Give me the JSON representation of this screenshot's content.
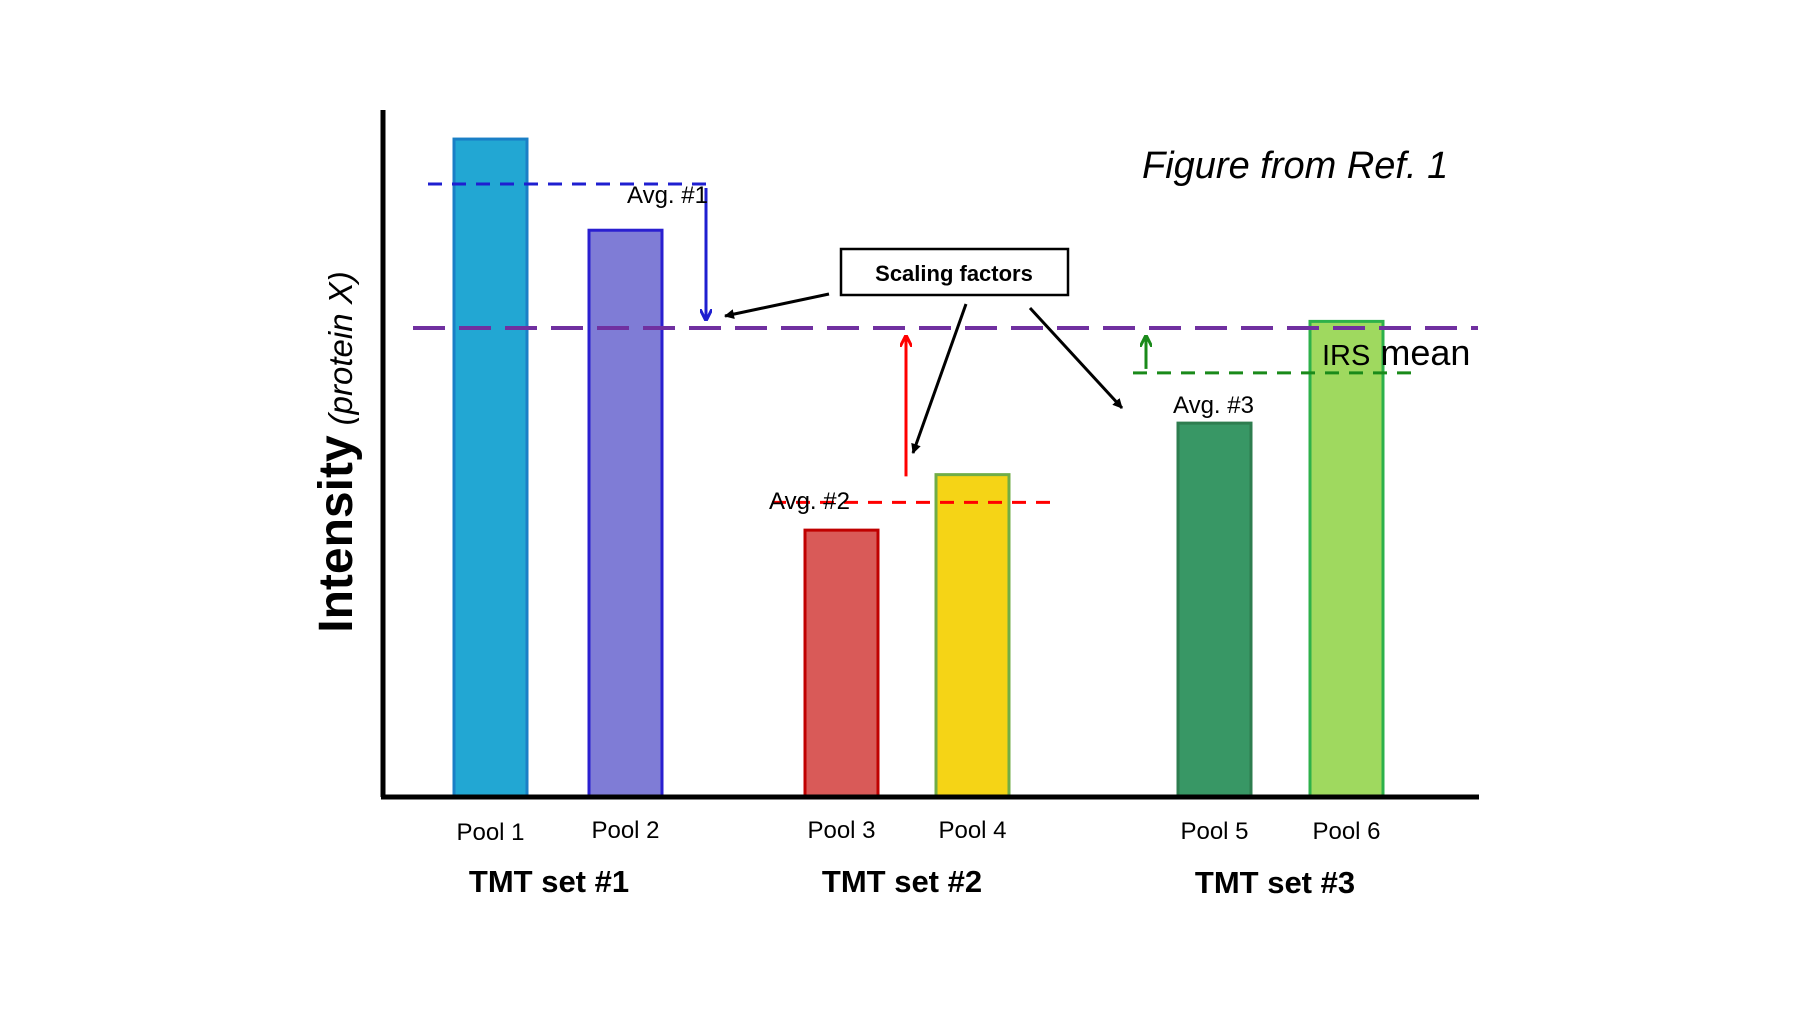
{
  "figure": {
    "reference_note": "Figure from Ref. 1",
    "y_axis": {
      "title": "Intensity",
      "subtitle": "(protein X)"
    },
    "callout": {
      "text": "Scaling factors"
    },
    "reference_line": {
      "label_small": "IRS",
      "label_large": " mean",
      "value": 355
    },
    "colors": {
      "irs_line": "#7030a0",
      "set1_avg": "#1f1fd0",
      "set2_avg": "#ff0000",
      "set3_avg": "#1a8a1a",
      "arrow": "#000000",
      "axis": "#000000"
    }
  },
  "chart_data": {
    "type": "bar",
    "title": "",
    "xlabel": "",
    "ylabel": "Intensity (protein X)",
    "ylim": [
      0,
      520
    ],
    "categories": [
      "Pool 1",
      "Pool 2",
      "Pool 3",
      "Pool 4",
      "Pool 5",
      "Pool 6"
    ],
    "values": [
      498,
      429,
      202,
      244,
      283,
      360
    ],
    "bar_colors": [
      {
        "fill": "#22a7d3",
        "stroke": "#1a7fc6"
      },
      {
        "fill": "#7f7cd6",
        "stroke": "#2a1fd0"
      },
      {
        "fill": "#d95a58",
        "stroke": "#c00000"
      },
      {
        "fill": "#f5d416",
        "stroke": "#70ad47"
      },
      {
        "fill": "#389765",
        "stroke": "#2e7d4f"
      },
      {
        "fill": "#9fd95f",
        "stroke": "#2db14a"
      }
    ],
    "groups": [
      {
        "name": "TMT set #1",
        "pools": [
          "Pool 1",
          "Pool 2"
        ],
        "avg_label": "Avg. #1",
        "avg_value": 464
      },
      {
        "name": "TMT set #2",
        "pools": [
          "Pool 3",
          "Pool 4"
        ],
        "avg_label": "Avg. #2",
        "avg_value": 223
      },
      {
        "name": "TMT set #3",
        "pools": [
          "Pool 5",
          "Pool 6"
        ],
        "avg_label": "Avg. #3",
        "avg_value": 321
      }
    ],
    "grid": false,
    "legend": "none"
  }
}
